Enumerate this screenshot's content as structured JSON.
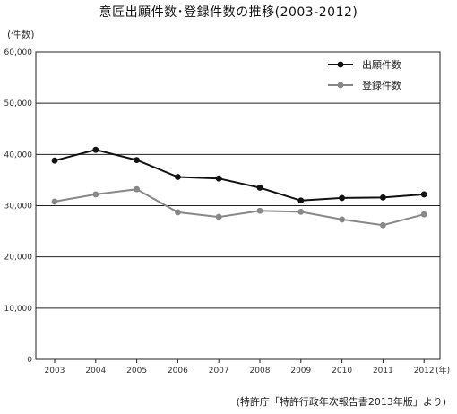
{
  "chart_data": {
    "type": "line",
    "title": "意匠出願件数･登録件数の推移(2003-2012)",
    "ylabel": "(件数)",
    "x": [
      "2003",
      "2004",
      "2005",
      "2006",
      "2007",
      "2008",
      "2009",
      "2010",
      "2011",
      "2012"
    ],
    "x_unit": "(年)",
    "ylim": [
      0,
      60000
    ],
    "yticks": [
      "0",
      "10,000",
      "20,000",
      "30,000",
      "40,000",
      "50,000",
      "60,000"
    ],
    "ytick_values": [
      0,
      10000,
      20000,
      30000,
      40000,
      50000,
      60000
    ],
    "grid": true,
    "legend_position": "top-right",
    "series": [
      {
        "name": "出願件数",
        "color": "#111111",
        "values": [
          38800,
          40900,
          38900,
          35600,
          35300,
          33500,
          31000,
          31500,
          31600,
          32200
        ]
      },
      {
        "name": "登録件数",
        "color": "#888888",
        "values": [
          30800,
          32200,
          33200,
          28700,
          27800,
          29000,
          28800,
          27300,
          26200,
          28300
        ]
      }
    ],
    "source": "(特許庁「特許行政年次報告書2013年版」より)"
  }
}
